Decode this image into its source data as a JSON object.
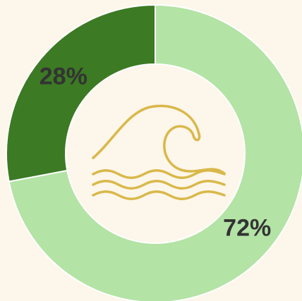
{
  "chart_data": {
    "type": "donut",
    "values": [
      72,
      28
    ],
    "value_labels": [
      "72%",
      "28%"
    ],
    "colors": [
      "#b3e3a5",
      "#3c7a24"
    ]
  }
}
